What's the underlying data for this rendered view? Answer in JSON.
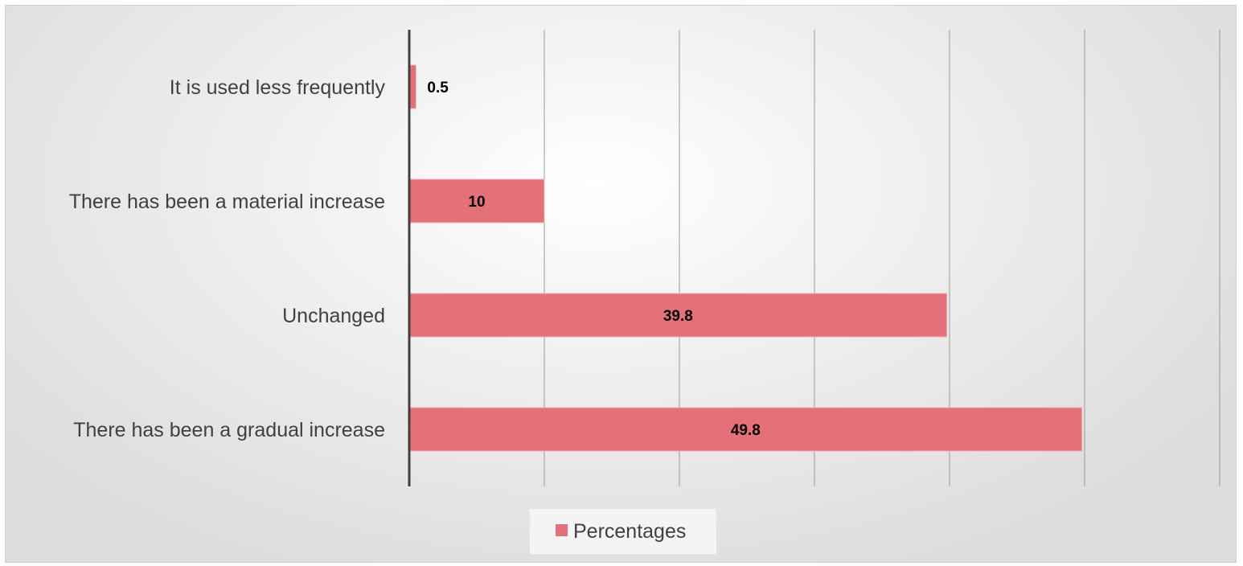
{
  "chart_data": {
    "type": "bar",
    "orientation": "horizontal",
    "categories": [
      "It is used less frequently",
      "There has been a material increase",
      "Unchanged",
      "There has been a gradual increase"
    ],
    "series": [
      {
        "name": "Percentages",
        "values": [
          0.5,
          10,
          39.8,
          49.8
        ],
        "color": "#e4707a"
      }
    ],
    "xlim": [
      0,
      60
    ],
    "xtick_step": 10,
    "grid": true,
    "legend": "bottom",
    "title": "",
    "xlabel": "",
    "ylabel": ""
  }
}
